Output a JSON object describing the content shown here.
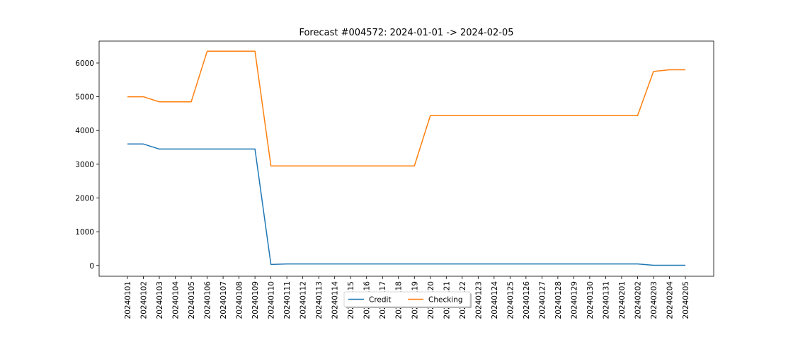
{
  "chart_data": {
    "type": "line",
    "title": "Forecast #004572: 2024-01-01 -> 2024-02-05",
    "xlabel": "",
    "ylabel": "",
    "categories": [
      "20240101",
      "20240102",
      "20240103",
      "20240104",
      "20240105",
      "20240106",
      "20240107",
      "20240108",
      "20240109",
      "20240110",
      "20240111",
      "20240112",
      "20240113",
      "20240114",
      "20240115",
      "20240116",
      "20240117",
      "20240118",
      "20240119",
      "20240120",
      "20240121",
      "20240122",
      "20240123",
      "20240124",
      "20240125",
      "20240126",
      "20240127",
      "20240128",
      "20240129",
      "20240130",
      "20240131",
      "20240201",
      "20240202",
      "20240203",
      "20240204",
      "20240205"
    ],
    "ylim": [
      -320,
      6650
    ],
    "yticks": [
      0,
      1000,
      2000,
      3000,
      4000,
      5000,
      6000
    ],
    "grid": false,
    "legend_position": "bottom-center",
    "series": [
      {
        "name": "Credit",
        "color": "#1f77b4",
        "values": [
          3600,
          3600,
          3450,
          3450,
          3450,
          3450,
          3450,
          3450,
          3450,
          30,
          45,
          45,
          45,
          45,
          45,
          45,
          45,
          45,
          45,
          45,
          45,
          45,
          45,
          45,
          45,
          45,
          45,
          45,
          45,
          45,
          45,
          45,
          45,
          5,
          5,
          5
        ]
      },
      {
        "name": "Checking",
        "color": "#ff7f0e",
        "values": [
          5000,
          5000,
          4850,
          4850,
          4850,
          6350,
          6350,
          6350,
          6350,
          2950,
          2950,
          2950,
          2950,
          2950,
          2950,
          2950,
          2950,
          2950,
          2950,
          4440,
          4440,
          4440,
          4440,
          4440,
          4440,
          4440,
          4440,
          4440,
          4440,
          4440,
          4440,
          4440,
          4440,
          5750,
          5800,
          5800
        ]
      }
    ]
  }
}
